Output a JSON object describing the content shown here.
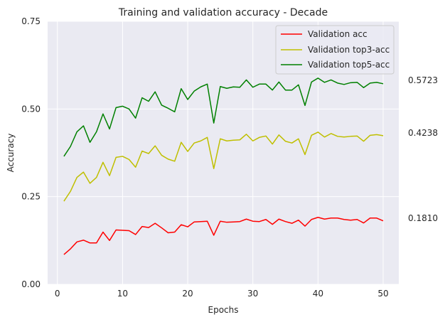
{
  "chart_data": {
    "type": "line",
    "title": "Training and validation accuracy - Decade",
    "xlabel": "Epochs",
    "ylabel": "Accuracy",
    "xlim": [
      -1.5,
      52.4
    ],
    "ylim": [
      0,
      0.75
    ],
    "xticks": [
      0,
      10,
      20,
      30,
      40,
      50
    ],
    "xtick_labels": [
      "0",
      "10",
      "20",
      "30",
      "40",
      "50"
    ],
    "yticks": [
      0,
      0.25,
      0.5,
      0.75
    ],
    "ytick_labels": [
      "0.00",
      "0.25",
      "0.50",
      "0.75"
    ],
    "grid": true,
    "background": "#eaeaf2",
    "legend_position": "upper right",
    "x": [
      1,
      2,
      3,
      4,
      5,
      6,
      7,
      8,
      9,
      10,
      11,
      12,
      13,
      14,
      15,
      16,
      17,
      18,
      19,
      20,
      21,
      22,
      23,
      24,
      25,
      26,
      27,
      28,
      29,
      30,
      31,
      32,
      33,
      34,
      35,
      36,
      37,
      38,
      39,
      40,
      41,
      42,
      43,
      44,
      45,
      46,
      47,
      48,
      49,
      50
    ],
    "series": [
      {
        "name": "Validation acc",
        "color": "#ff0000",
        "values": [
          0.085,
          0.101,
          0.121,
          0.126,
          0.118,
          0.118,
          0.149,
          0.125,
          0.155,
          0.154,
          0.153,
          0.142,
          0.165,
          0.162,
          0.174,
          0.161,
          0.147,
          0.149,
          0.17,
          0.164,
          0.178,
          0.179,
          0.18,
          0.14,
          0.18,
          0.177,
          0.178,
          0.179,
          0.186,
          0.18,
          0.179,
          0.185,
          0.171,
          0.186,
          0.179,
          0.174,
          0.183,
          0.166,
          0.185,
          0.191,
          0.186,
          0.189,
          0.189,
          0.185,
          0.183,
          0.185,
          0.175,
          0.189,
          0.189,
          0.181
        ]
      },
      {
        "name": "Validation top3-acc",
        "color": "#bfbf00",
        "values": [
          0.237,
          0.265,
          0.305,
          0.32,
          0.288,
          0.305,
          0.348,
          0.31,
          0.362,
          0.365,
          0.356,
          0.334,
          0.38,
          0.373,
          0.395,
          0.368,
          0.357,
          0.351,
          0.405,
          0.379,
          0.403,
          0.409,
          0.419,
          0.33,
          0.415,
          0.409,
          0.411,
          0.412,
          0.428,
          0.409,
          0.419,
          0.423,
          0.4,
          0.426,
          0.408,
          0.403,
          0.415,
          0.37,
          0.425,
          0.434,
          0.42,
          0.43,
          0.422,
          0.42,
          0.422,
          0.423,
          0.408,
          0.425,
          0.427,
          0.424
        ]
      },
      {
        "name": "Validation top5-acc",
        "color": "#008000",
        "values": [
          0.365,
          0.393,
          0.435,
          0.452,
          0.405,
          0.435,
          0.486,
          0.443,
          0.504,
          0.508,
          0.5,
          0.474,
          0.532,
          0.522,
          0.549,
          0.511,
          0.502,
          0.492,
          0.558,
          0.527,
          0.551,
          0.563,
          0.571,
          0.46,
          0.564,
          0.559,
          0.563,
          0.562,
          0.583,
          0.562,
          0.571,
          0.571,
          0.554,
          0.577,
          0.554,
          0.554,
          0.569,
          0.51,
          0.577,
          0.588,
          0.576,
          0.583,
          0.574,
          0.57,
          0.575,
          0.576,
          0.561,
          0.574,
          0.576,
          0.572
        ]
      }
    ],
    "end_labels": [
      "0.5723",
      "0.4238",
      "0.1810"
    ]
  }
}
